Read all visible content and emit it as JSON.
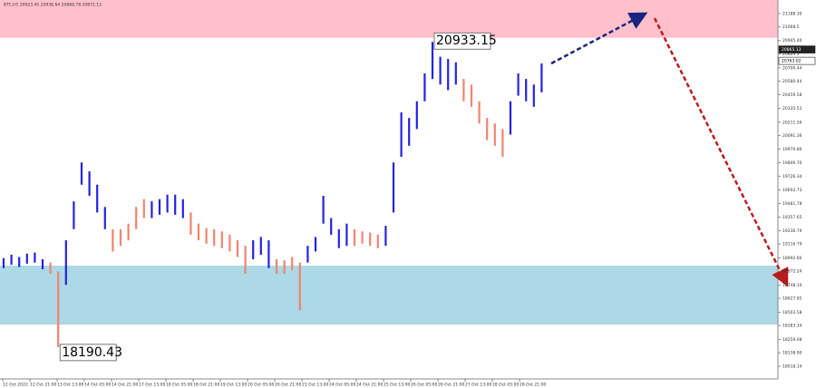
{
  "chart_data": {
    "type": "ohlc",
    "symbol_header": "BTC,H1  20923.45 20938.64 20868.78 20872.13",
    "up_color": "#2323e0",
    "down_color": "#f08470",
    "ylim": [
      17904,
      21310
    ],
    "yticks": [
      {
        "value": 21188.3,
        "label": "21188.30"
      },
      21068.5,
      {
        "value": 20945.4,
        "label": "20945.40"
      },
      20824.3,
      20700.44,
      20580.44,
      20459.58,
      20335.53,
      20211.56,
      20091.36,
      {
        "value": 19970.8,
        "label": "19970.80"
      },
      {
        "value": 19846.7,
        "label": "19846.70"
      },
      19726.34,
      19602.73,
      19481.78,
      19357.65,
      19236.79,
      19116.79,
      {
        "value": 18992.6,
        "label": "18992.60"
      },
      18872.24,
      {
        "value": 18748.1,
        "label": "18748.10"
      },
      18627.85,
      18503.58,
      18383.34,
      18259.08,
      {
        "value": 18138.9,
        "label": "18138.90"
      },
      18018.14
    ],
    "x_labels": [
      "12 Oct 2022",
      "12 Oct 21:00",
      "13 Oct 13:00",
      "14 Oct 05:00",
      "14 Oct 21:00",
      "17 Oct 13:00",
      "18 Oct 05:00",
      "18 Oct 21:00",
      "19 Oct 13:00",
      "20 Oct 05:00",
      "20 Oct 21:00",
      "21 Oct 13:00",
      "24 Oct 05:00",
      "24 Oct 21:00",
      "25 Oct 13:00",
      "26 Oct 05:00",
      "26 Oct 21:00",
      "27 Oct 13:00",
      "28 Oct 05:00",
      "28 Oct 21:00"
    ],
    "zones": [
      {
        "from": 20970,
        "to": 21310,
        "color": "#ffc0cb"
      },
      {
        "from": 18392,
        "to": 18922,
        "color": "#add8e6"
      }
    ],
    "highs": [
      18990,
      19020,
      19000,
      19030,
      19040,
      18980,
      18950,
      18870,
      19150,
      19500,
      19850,
      19770,
      19650,
      19450,
      19250,
      19250,
      19300,
      19450,
      19520,
      19500,
      19520,
      19560,
      19560,
      19520,
      19400,
      19300,
      19260,
      19250,
      19230,
      19200,
      19150,
      19100,
      19150,
      19180,
      19150,
      18980,
      18970,
      19000,
      18950,
      19100,
      19180,
      19550,
      19350,
      19250,
      19300,
      19250,
      19230,
      19220,
      19200,
      19280,
      19850,
      20300,
      20250,
      20400,
      20650,
      20933.15,
      20800,
      20780,
      20750,
      20600,
      20550,
      20400,
      20250,
      20200,
      20150,
      20400,
      20650,
      20600,
      20550,
      20740
    ],
    "lows": [
      18900,
      18930,
      18910,
      18940,
      18950,
      18890,
      18850,
      18190.43,
      18750,
      19250,
      19650,
      19550,
      19400,
      19250,
      19050,
      19100,
      19150,
      19250,
      19350,
      19350,
      19380,
      19400,
      19380,
      19350,
      19200,
      19150,
      19120,
      19100,
      19080,
      19050,
      19000,
      18850,
      18980,
      19020,
      18900,
      18850,
      18850,
      18880,
      18520,
      18950,
      19050,
      19300,
      19200,
      19080,
      19100,
      19100,
      19120,
      19100,
      19080,
      19100,
      19400,
      19900,
      20000,
      20150,
      20400,
      20600,
      20550,
      20500,
      20550,
      20400,
      20350,
      20200,
      20050,
      20000,
      19900,
      20100,
      20450,
      20400,
      20350,
      20480
    ],
    "direction": [
      "up",
      "up",
      "up",
      "up",
      "up",
      "up",
      "down",
      "down",
      "up",
      "up",
      "up",
      "up",
      "up",
      "up",
      "down",
      "down",
      "down",
      "down",
      "down",
      "up",
      "up",
      "up",
      "up",
      "up",
      "down",
      "down",
      "down",
      "down",
      "down",
      "down",
      "down",
      "down",
      "up",
      "up",
      "up",
      "down",
      "down",
      "down",
      "down",
      "up",
      "up",
      "up",
      "up",
      "up",
      "up",
      "down",
      "down",
      "down",
      "down",
      "up",
      "up",
      "up",
      "up",
      "up",
      "up",
      "up",
      "up",
      "up",
      "up",
      "down",
      "down",
      "down",
      "down",
      "down",
      "down",
      "up",
      "up",
      "up",
      "up",
      "up"
    ],
    "annotations": [
      20933.15,
      18190.43
    ],
    "price_tags": [
      20865.13,
      20763.02
    ]
  }
}
